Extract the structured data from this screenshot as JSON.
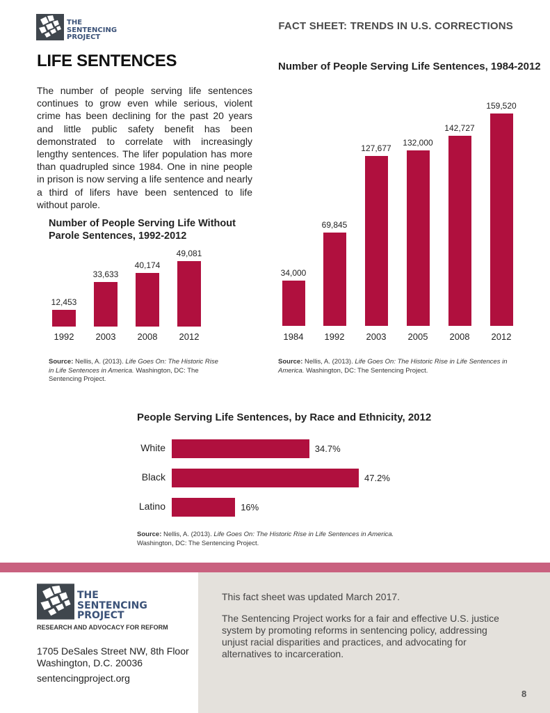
{
  "header": {
    "org_name_lines": [
      "THE",
      "SENTENCING",
      "PROJECT"
    ],
    "series_title": "FACT SHEET: TRENDS IN U.S. CORRECTIONS"
  },
  "page_title": "LIFE SENTENCES",
  "intro": "The number of people serving life sentences continues to grow even while serious, violent crime has been declining for the past 20 years and little public safety benefit has been demonstrated to correlate with increasingly lengthy sentences. The lifer population has more than quadrupled since 1984. One in nine people in prison is now serving a life sentence and nearly a third of lifers have been sentenced to life without parole.",
  "chart_data": [
    {
      "type": "bar",
      "title": "Number of People Serving Life Sentences, 1984-2012",
      "categories": [
        "1984",
        "1992",
        "2003",
        "2005",
        "2008",
        "2012"
      ],
      "values": [
        34000,
        69845,
        127677,
        132000,
        142727,
        159520
      ],
      "labels": [
        "34,000",
        "69,845",
        "127,677",
        "132,000",
        "142,727",
        "159,520"
      ],
      "color": "#b0103e"
    },
    {
      "type": "bar",
      "title": "Number of People Serving Life Without Parole Sentences, 1992-2012",
      "title_lines": [
        "Number of People Serving Life Without",
        "Parole Sentences, 1992-2012"
      ],
      "categories": [
        "1992",
        "2003",
        "2008",
        "2012"
      ],
      "values": [
        12453,
        33633,
        40174,
        49081
      ],
      "labels": [
        "12,453",
        "33,633",
        "40,174",
        "49,081"
      ],
      "color": "#b0103e"
    },
    {
      "type": "bar",
      "orientation": "horizontal",
      "title": "People Serving Life Sentences, by Race and Ethnicity, 2012",
      "categories": [
        "White",
        "Black",
        "Latino"
      ],
      "values": [
        34.7,
        47.2,
        16
      ],
      "labels": [
        "34.7%",
        "47.2%",
        "16%"
      ],
      "color": "#b0103e"
    }
  ],
  "sources": {
    "prefix": "Source:",
    "author": "Nellis, A. (2013).",
    "title": "Life Goes On: The Historic Rise in Life Sentences in America.",
    "publisher": "Washington, DC: The Sentencing Project."
  },
  "footer": {
    "org_name_lines": [
      "THE",
      "SENTENCING",
      "PROJECT"
    ],
    "tagline": "RESEARCH AND ADVOCACY FOR REFORM",
    "address_line1": "1705 DeSales Street NW, 8th Floor",
    "address_line2": "Washington, D.C. 20036",
    "website": "sentencingproject.org",
    "updated": "This fact sheet was updated March 2017.",
    "mission": "The Sentencing Project works for a fair and effective U.S. justice system by promoting reforms in sentencing policy, addressing unjust racial disparities and practices, and advocating for alternatives to incarceration.",
    "page_number": "8"
  }
}
